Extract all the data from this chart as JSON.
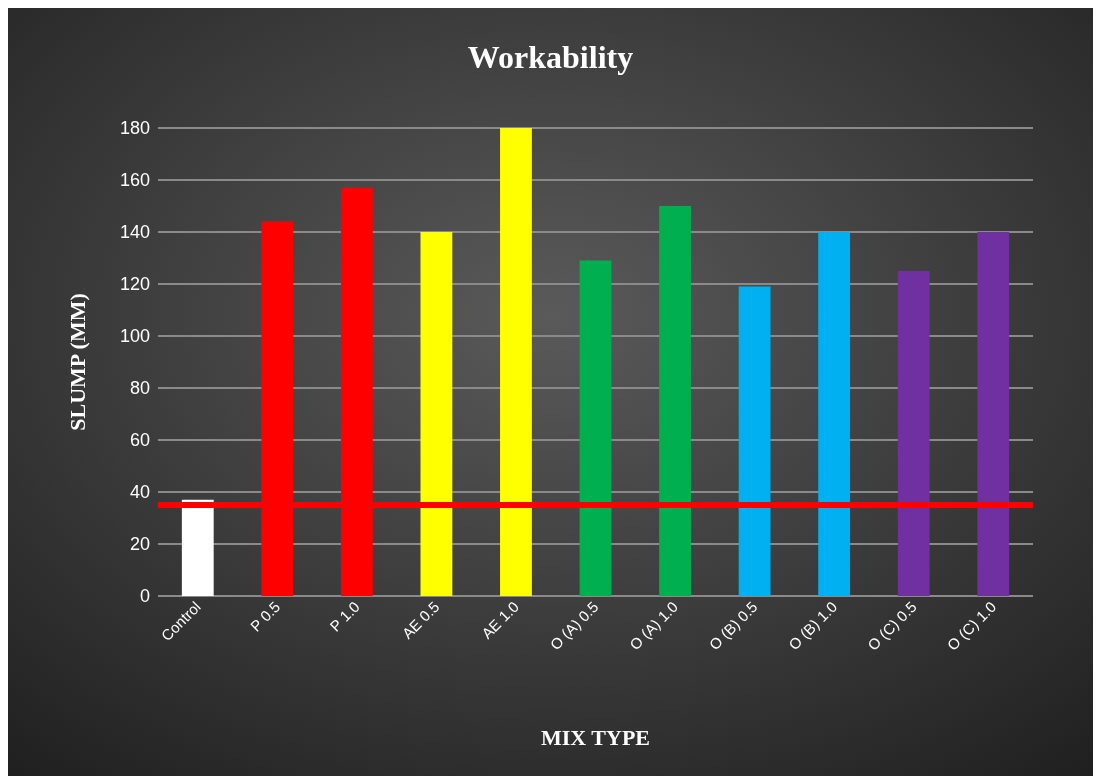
{
  "chart_data": {
    "type": "bar",
    "title": "Workability",
    "xlabel": "MIX TYPE",
    "ylabel": "SLUMP (MM)",
    "categories": [
      "Control",
      "P 0.5",
      "P 1.0",
      "AE 0.5",
      "AE 1.0",
      "O (A) 0.5",
      "O (A) 1.0",
      "O (B) 0.5",
      "O (B) 1.0",
      "O (C) 0.5",
      "O (C) 1.0"
    ],
    "values": [
      37,
      144,
      157,
      140,
      180,
      129,
      150,
      119,
      140,
      125,
      140
    ],
    "colors": [
      "#ffffff",
      "#ff0000",
      "#ff0000",
      "#ffff00",
      "#ffff00",
      "#00b050",
      "#00b050",
      "#00b0f0",
      "#00b0f0",
      "#7030a0",
      "#7030a0"
    ],
    "ylim": [
      0,
      180
    ],
    "yticks": [
      0,
      20,
      40,
      60,
      80,
      100,
      120,
      140,
      160,
      180
    ],
    "grid": "y",
    "ref_lines": [
      {
        "axis": "y",
        "value": 35,
        "color": "#ff0000"
      }
    ]
  }
}
